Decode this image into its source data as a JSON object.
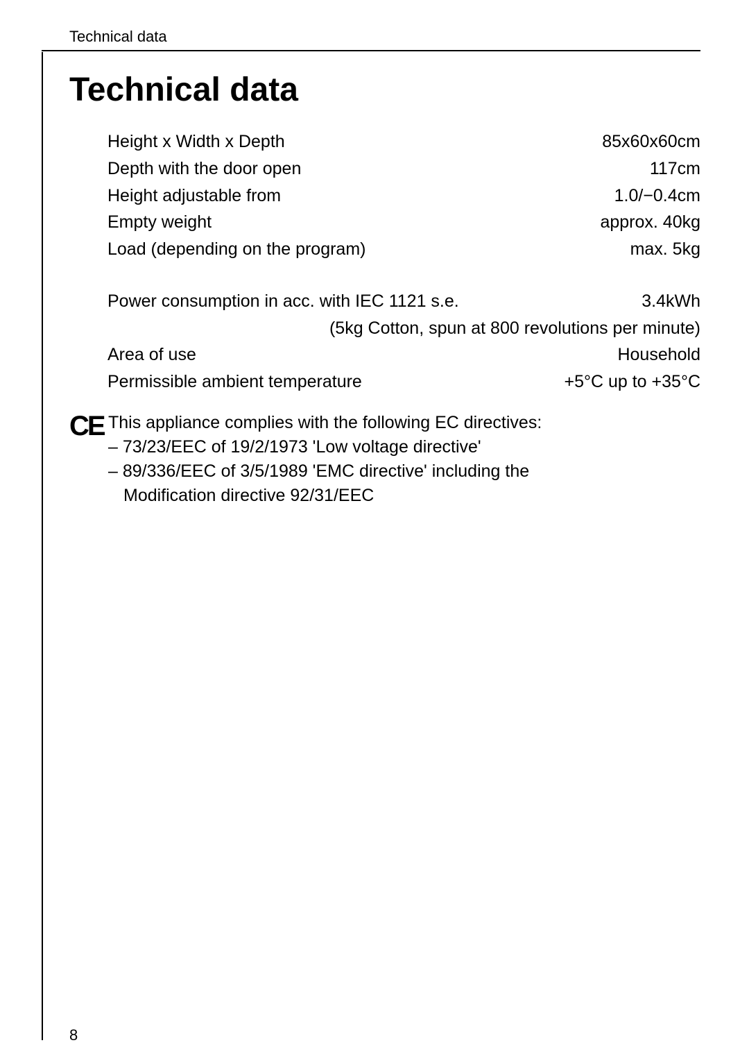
{
  "header": {
    "section_label": "Technical data"
  },
  "title": "Technical data",
  "specs_block1": [
    {
      "label": "Height x Width x Depth",
      "value": "85x60x60cm"
    },
    {
      "label": "Depth with the door open",
      "value": "117cm"
    },
    {
      "label": "Height adjustable from",
      "value": "1.0/−0.4cm"
    },
    {
      "label": "Empty weight",
      "value": "approx. 40kg"
    },
    {
      "label": "Load (depending on the program)",
      "value": "max. 5kg"
    }
  ],
  "specs_block2": [
    {
      "label": "Power consumption in acc. with IEC 1121 s.e.",
      "value": "3.4kWh"
    }
  ],
  "spec_note": "(5kg Cotton, spun at 800 revolutions per minute)",
  "specs_block3": [
    {
      "label": "Area of use",
      "value": "Household"
    },
    {
      "label": "Permissible ambient temperature",
      "value": "+5°C up to +35°C"
    }
  ],
  "compliance": {
    "ce_mark": "CE",
    "intro": "This appliance complies with the following EC directives:",
    "items": [
      "– 73/23/EEC of 19/2/1973 'Low voltage directive'",
      "– 89/336/EEC of 3/5/1989 'EMC directive' including the"
    ],
    "continuation": "Modification directive 92/31/EEC"
  },
  "page_number": "8",
  "style": {
    "bg": "#ffffff",
    "text": "#000000",
    "rule": "#000000",
    "body_fontsize": 25,
    "title_fontsize": 48,
    "header_fontsize": 22,
    "ce_fontsize": 40
  }
}
